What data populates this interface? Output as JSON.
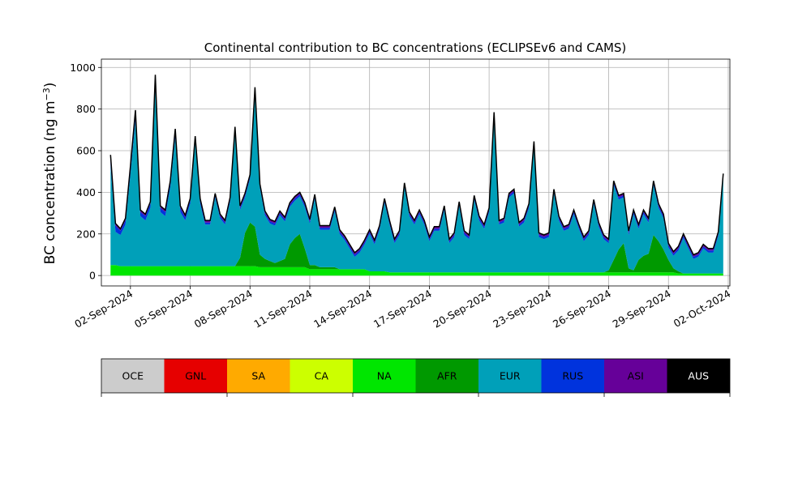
{
  "chart_data": {
    "type": "area",
    "stacked": true,
    "title": "Continental contribution to BC concentrations (ECLIPSEv6 and CAMS)",
    "ylabel": "BC concentration (ng m",
    "ylabel_exponent": "−3",
    "ylabel_close": ")",
    "xlabel": "",
    "x_range": [
      "2024-08-31T13:00",
      "2024-10-02T02:00"
    ],
    "ylim": [
      -50,
      1040
    ],
    "yticks": [
      0,
      200,
      400,
      600,
      800,
      1000
    ],
    "xticks": [
      "2024-09-02",
      "2024-09-05",
      "2024-09-08",
      "2024-09-11",
      "2024-09-14",
      "2024-09-17",
      "2024-09-20",
      "2024-09-23",
      "2024-09-26",
      "2024-09-29",
      "2024-10-02"
    ],
    "xtick_labels": [
      "02-Sep-2024",
      "05-Sep-2024",
      "08-Sep-2024",
      "11-Sep-2024",
      "14-Sep-2024",
      "17-Sep-2024",
      "20-Sep-2024",
      "23-Sep-2024",
      "26-Sep-2024",
      "29-Sep-2024",
      "02-Oct-2024"
    ],
    "grid": true,
    "legend_placement": "colorbar-below",
    "legend": [
      {
        "name": "OCE",
        "color": "#cccccc",
        "text_color": "#000000"
      },
      {
        "name": "GNL",
        "color": "#e60000",
        "text_color": "#000000"
      },
      {
        "name": "SA",
        "color": "#ffaa00",
        "text_color": "#000000"
      },
      {
        "name": "CA",
        "color": "#ccff00",
        "text_color": "#000000"
      },
      {
        "name": "NA",
        "color": "#00e600",
        "text_color": "#000000"
      },
      {
        "name": "AFR",
        "color": "#009900",
        "text_color": "#000000"
      },
      {
        "name": "EUR",
        "color": "#00a0b9",
        "text_color": "#000000"
      },
      {
        "name": "RUS",
        "color": "#0033dd",
        "text_color": "#000000"
      },
      {
        "name": "ASI",
        "color": "#660099",
        "text_color": "#000000"
      },
      {
        "name": "AUS",
        "color": "#000000",
        "text_color": "#ffffff"
      }
    ],
    "series_colors": {
      "NA": "#00e600",
      "AFR": "#009900",
      "EUR": "#00a0b9",
      "RUS": "#0033dd",
      "ASI": "#660099",
      "total": "#000000"
    },
    "times": [
      "2024-09-01T00:00",
      "2024-09-01T06:00",
      "2024-09-01T12:00",
      "2024-09-01T18:00",
      "2024-09-02T00:00",
      "2024-09-02T06:00",
      "2024-09-02T12:00",
      "2024-09-02T18:00",
      "2024-09-03T00:00",
      "2024-09-03T06:00",
      "2024-09-03T12:00",
      "2024-09-03T18:00",
      "2024-09-04T00:00",
      "2024-09-04T06:00",
      "2024-09-04T12:00",
      "2024-09-04T18:00",
      "2024-09-05T00:00",
      "2024-09-05T06:00",
      "2024-09-05T12:00",
      "2024-09-05T18:00",
      "2024-09-06T00:00",
      "2024-09-06T06:00",
      "2024-09-06T12:00",
      "2024-09-06T18:00",
      "2024-09-07T00:00",
      "2024-09-07T06:00",
      "2024-09-07T12:00",
      "2024-09-07T18:00",
      "2024-09-08T00:00",
      "2024-09-08T06:00",
      "2024-09-08T12:00",
      "2024-09-08T18:00",
      "2024-09-09T00:00",
      "2024-09-09T06:00",
      "2024-09-09T12:00",
      "2024-09-09T18:00",
      "2024-09-10T00:00",
      "2024-09-10T06:00",
      "2024-09-10T12:00",
      "2024-09-10T18:00",
      "2024-09-11T00:00",
      "2024-09-11T06:00",
      "2024-09-11T12:00",
      "2024-09-11T18:00",
      "2024-09-12T00:00",
      "2024-09-12T06:00",
      "2024-09-12T12:00",
      "2024-09-12T18:00",
      "2024-09-13T00:00",
      "2024-09-13T06:00",
      "2024-09-13T12:00",
      "2024-09-13T18:00",
      "2024-09-14T00:00",
      "2024-09-14T06:00",
      "2024-09-14T12:00",
      "2024-09-14T18:00",
      "2024-09-15T00:00",
      "2024-09-15T06:00",
      "2024-09-15T12:00",
      "2024-09-15T18:00",
      "2024-09-16T00:00",
      "2024-09-16T06:00",
      "2024-09-16T12:00",
      "2024-09-16T18:00",
      "2024-09-17T00:00",
      "2024-09-17T06:00",
      "2024-09-17T12:00",
      "2024-09-17T18:00",
      "2024-09-18T00:00",
      "2024-09-18T06:00",
      "2024-09-18T12:00",
      "2024-09-18T18:00",
      "2024-09-19T00:00",
      "2024-09-19T06:00",
      "2024-09-19T12:00",
      "2024-09-19T18:00",
      "2024-09-20T00:00",
      "2024-09-20T06:00",
      "2024-09-20T12:00",
      "2024-09-20T18:00",
      "2024-09-21T00:00",
      "2024-09-21T06:00",
      "2024-09-21T12:00",
      "2024-09-21T18:00",
      "2024-09-22T00:00",
      "2024-09-22T06:00",
      "2024-09-22T12:00",
      "2024-09-22T18:00",
      "2024-09-23T00:00",
      "2024-09-23T06:00",
      "2024-09-23T12:00",
      "2024-09-23T18:00",
      "2024-09-24T00:00",
      "2024-09-24T06:00",
      "2024-09-24T12:00",
      "2024-09-24T18:00",
      "2024-09-25T00:00",
      "2024-09-25T06:00",
      "2024-09-25T12:00",
      "2024-09-25T18:00",
      "2024-09-26T00:00",
      "2024-09-26T06:00",
      "2024-09-26T12:00",
      "2024-09-26T18:00",
      "2024-09-27T00:00",
      "2024-09-27T06:00",
      "2024-09-27T12:00",
      "2024-09-27T18:00",
      "2024-09-28T00:00",
      "2024-09-28T06:00",
      "2024-09-28T12:00",
      "2024-09-28T18:00",
      "2024-09-29T00:00",
      "2024-09-29T06:00",
      "2024-09-29T12:00",
      "2024-09-29T18:00",
      "2024-09-30T00:00",
      "2024-09-30T06:00",
      "2024-09-30T12:00",
      "2024-09-30T18:00",
      "2024-10-01T00:00",
      "2024-10-01T06:00",
      "2024-10-01T12:00",
      "2024-10-01T18:00"
    ],
    "series": [
      {
        "name": "NA",
        "values": [
          50,
          50,
          45,
          45,
          45,
          45,
          45,
          45,
          45,
          45,
          45,
          45,
          45,
          45,
          45,
          45,
          45,
          45,
          45,
          45,
          45,
          45,
          45,
          45,
          45,
          45,
          45,
          45,
          45,
          45,
          40,
          40,
          40,
          40,
          40,
          40,
          40,
          40,
          40,
          40,
          30,
          30,
          30,
          30,
          30,
          30,
          30,
          30,
          30,
          30,
          30,
          30,
          20,
          20,
          20,
          20,
          15,
          15,
          15,
          15,
          15,
          15,
          15,
          15,
          15,
          15,
          15,
          15,
          15,
          15,
          15,
          15,
          15,
          15,
          15,
          15,
          15,
          15,
          15,
          15,
          15,
          15,
          15,
          15,
          15,
          15,
          15,
          15,
          15,
          15,
          15,
          15,
          15,
          15,
          15,
          15,
          15,
          15,
          15,
          15,
          15,
          15,
          15,
          15,
          15,
          15,
          15,
          15,
          15,
          15,
          15,
          15,
          15,
          15,
          10,
          10,
          10,
          10,
          10,
          10,
          10,
          10,
          10,
          10
        ]
      },
      {
        "name": "AFR",
        "values": [
          0,
          0,
          0,
          0,
          0,
          0,
          0,
          0,
          0,
          0,
          0,
          0,
          0,
          0,
          0,
          0,
          0,
          0,
          0,
          0,
          0,
          0,
          0,
          0,
          0,
          0,
          40,
          160,
          210,
          190,
          60,
          40,
          30,
          20,
          30,
          40,
          110,
          140,
          160,
          90,
          20,
          20,
          10,
          10,
          10,
          10,
          0,
          0,
          0,
          0,
          0,
          0,
          0,
          0,
          0,
          0,
          0,
          0,
          0,
          0,
          0,
          0,
          0,
          0,
          0,
          0,
          0,
          0,
          0,
          0,
          0,
          0,
          0,
          0,
          0,
          0,
          0,
          0,
          0,
          0,
          0,
          0,
          0,
          0,
          0,
          0,
          0,
          0,
          0,
          0,
          0,
          0,
          0,
          0,
          0,
          0,
          0,
          0,
          0,
          0,
          10,
          60,
          110,
          140,
          20,
          10,
          60,
          80,
          90,
          180,
          150,
          110,
          60,
          20,
          10,
          0,
          0,
          0,
          0,
          0,
          0,
          0,
          0,
          0
        ]
      },
      {
        "name": "EUR",
        "values": [
          480,
          160,
          150,
          200,
          440,
          700,
          240,
          220,
          280,
          870,
          260,
          240,
          380,
          620,
          260,
          220,
          300,
          600,
          300,
          200,
          200,
          330,
          230,
          200,
          310,
          650,
          230,
          170,
          210,
          650,
          320,
          210,
          180,
          180,
          220,
          180,
          180,
          180,
          180,
          200,
          200,
          320,
          180,
          180,
          180,
          270,
          170,
          140,
          100,
          60,
          80,
          120,
          180,
          130,
          200,
          330,
          230,
          140,
          180,
          410,
          270,
          230,
          280,
          230,
          150,
          200,
          200,
          300,
          140,
          170,
          320,
          180,
          160,
          350,
          250,
          210,
          290,
          750,
          230,
          240,
          360,
          380,
          220,
          240,
          310,
          610,
          170,
          160,
          170,
          380,
          250,
          200,
          210,
          280,
          210,
          150,
          180,
          330,
          220,
          160,
          130,
          360,
          240,
          220,
          160,
          270,
          150,
          200,
          150,
          240,
          160,
          150,
          60,
          60,
          100,
          170,
          120,
          70,
          80,
          120,
          100,
          100,
          180,
          460
        ]
      },
      {
        "name": "RUS",
        "values": [
          40,
          30,
          20,
          20,
          30,
          40,
          20,
          20,
          20,
          40,
          20,
          20,
          20,
          30,
          20,
          15,
          15,
          15,
          15,
          10,
          10,
          10,
          10,
          10,
          10,
          10,
          10,
          10,
          10,
          10,
          10,
          10,
          10,
          10,
          10,
          10,
          10,
          10,
          10,
          10,
          10,
          10,
          10,
          10,
          10,
          10,
          10,
          10,
          10,
          10,
          10,
          10,
          10,
          10,
          10,
          10,
          10,
          10,
          10,
          10,
          10,
          10,
          10,
          10,
          10,
          10,
          10,
          10,
          10,
          10,
          10,
          10,
          10,
          10,
          10,
          10,
          10,
          10,
          10,
          10,
          10,
          10,
          10,
          10,
          10,
          10,
          10,
          10,
          10,
          10,
          10,
          10,
          10,
          10,
          10,
          10,
          10,
          10,
          10,
          10,
          10,
          10,
          10,
          10,
          10,
          10,
          10,
          10,
          10,
          10,
          10,
          10,
          10,
          10,
          10,
          10,
          10,
          10,
          10,
          10,
          10,
          10,
          10,
          10
        ]
      },
      {
        "name": "ASI",
        "values": [
          10,
          10,
          10,
          10,
          10,
          10,
          10,
          10,
          10,
          10,
          10,
          10,
          10,
          10,
          10,
          10,
          10,
          10,
          10,
          10,
          10,
          10,
          10,
          10,
          10,
          10,
          10,
          10,
          10,
          10,
          10,
          10,
          10,
          10,
          10,
          10,
          10,
          10,
          10,
          10,
          10,
          10,
          10,
          10,
          10,
          10,
          10,
          10,
          10,
          10,
          10,
          10,
          10,
          10,
          10,
          10,
          10,
          10,
          10,
          10,
          10,
          10,
          10,
          10,
          10,
          10,
          10,
          10,
          10,
          10,
          10,
          10,
          10,
          10,
          10,
          10,
          10,
          10,
          10,
          10,
          10,
          10,
          10,
          10,
          10,
          10,
          10,
          10,
          10,
          10,
          10,
          10,
          10,
          10,
          10,
          10,
          10,
          10,
          10,
          10,
          10,
          10,
          10,
          10,
          10,
          10,
          10,
          10,
          10,
          10,
          10,
          10,
          10,
          10,
          10,
          10,
          10,
          10,
          10,
          10,
          10,
          10,
          10,
          10
        ]
      }
    ]
  }
}
